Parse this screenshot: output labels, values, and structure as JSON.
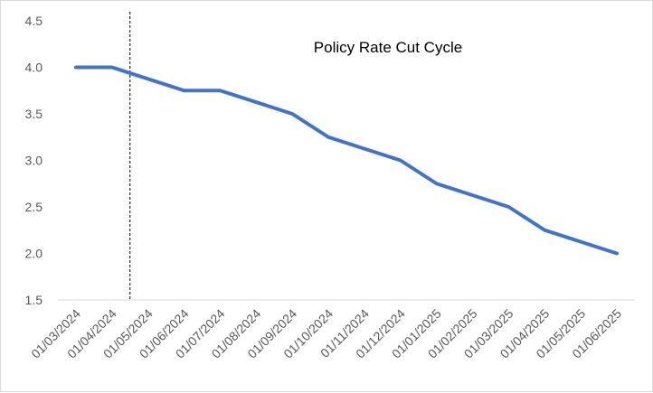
{
  "chart_data": {
    "type": "line",
    "title": "Policy Rate Cut Cycle",
    "xlabel": "",
    "ylabel": "",
    "ylim": [
      1.5,
      4.5
    ],
    "y_ticks": [
      "1.5",
      "2.0",
      "2.5",
      "3.0",
      "3.5",
      "4.0",
      "4.5"
    ],
    "grid": false,
    "legend": "none",
    "categories": [
      "01/03/2024",
      "01/04/2024",
      "01/05/2024",
      "01/06/2024",
      "01/07/2024",
      "01/08/2024",
      "01/09/2024",
      "01/10/2024",
      "01/11/2024",
      "01/12/2024",
      "01/01/2025",
      "01/02/2025",
      "01/03/2025",
      "01/04/2025",
      "01/05/2025",
      "01/06/2025"
    ],
    "series": [
      {
        "x": [
          "01/03/2024",
          "01/04/2024",
          "01/06/2024",
          "01/07/2024",
          "01/09/2024",
          "01/10/2024",
          "01/12/2024",
          "01/01/2025",
          "01/03/2025",
          "01/04/2025",
          "01/06/2025"
        ],
        "values": [
          4.0,
          4.0,
          3.75,
          3.75,
          3.5,
          3.25,
          3.0,
          2.75,
          2.5,
          2.25,
          2.0
        ]
      }
    ],
    "vertical_marker": "01/04/2024",
    "line_color": "#4472C4"
  }
}
